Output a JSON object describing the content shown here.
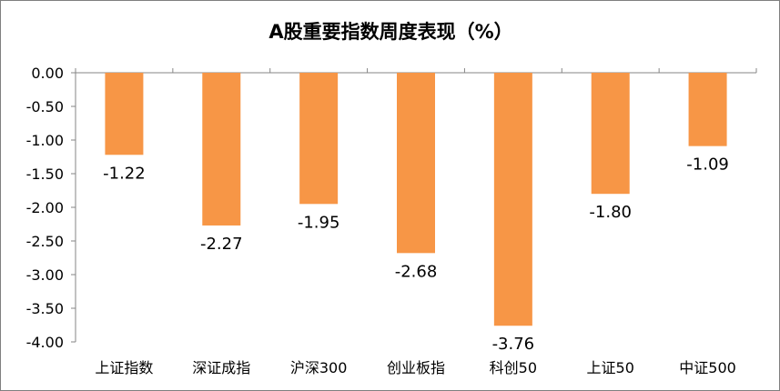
{
  "chart_data": {
    "type": "bar",
    "title": "A股重要指数周度表现（%）",
    "categories": [
      "上证指数",
      "深证成指",
      "沪深300",
      "创业板指",
      "科创50",
      "上证50",
      "中证500"
    ],
    "values": [
      -1.22,
      -2.27,
      -1.95,
      -2.68,
      -3.76,
      -1.8,
      -1.09
    ],
    "value_labels": [
      "-1.22",
      "-2.27",
      "-1.95",
      "-2.68",
      "-3.76",
      "-1.80",
      "-1.09"
    ],
    "y_ticks": [
      "0.00",
      "-0.50",
      "-1.00",
      "-1.50",
      "-2.00",
      "-2.50",
      "-3.00",
      "-3.50",
      "-4.00"
    ],
    "ylim": [
      -4.0,
      0.0
    ],
    "y_step": 0.5,
    "xlabel": "",
    "ylabel": "",
    "grid": false,
    "legend": "none",
    "bar_color": "#F79646",
    "axis_color": "#868686"
  }
}
